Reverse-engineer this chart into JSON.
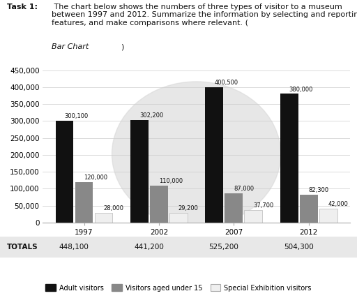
{
  "years": [
    "1997",
    "2002",
    "2007",
    "2012"
  ],
  "adult_visitors": [
    300100,
    302200,
    400500,
    380000
  ],
  "under15_visitors": [
    120000,
    110000,
    87000,
    82300
  ],
  "special_exhibition": [
    28000,
    29200,
    37700,
    42000
  ],
  "totals": [
    "448,100",
    "441,200",
    "525,200",
    "504,300"
  ],
  "colors": {
    "adult": "#111111",
    "under15": "#888888",
    "special": "#efefef"
  },
  "ylim": [
    0,
    450000
  ],
  "yticks": [
    0,
    50000,
    100000,
    150000,
    200000,
    250000,
    300000,
    350000,
    400000,
    450000
  ],
  "ytick_labels": [
    "0",
    "50,000",
    "100,000",
    "150,000",
    "200,000",
    "250,000",
    "300,000",
    "350,000",
    "400,000",
    "450,000"
  ],
  "title_bold": "Task 1:",
  "title_rest": " The chart below shows the numbers of three types of visitor to a museum between 1997 and 2012. Summarize the information by selecting and reporting the main features, and make comparisons where relevant. (",
  "title_italic": "Bar Chart",
  "title_end": ")",
  "legend_labels": [
    "Adult visitors",
    "Visitors aged under 15",
    "Special Exhibition visitors"
  ],
  "totals_label": "TOTALS",
  "watermark_color": "#d8d8d8",
  "label_fontsize": 6.0,
  "axis_fontsize": 7.5,
  "totals_fontsize": 7.5,
  "legend_fontsize": 7.0
}
